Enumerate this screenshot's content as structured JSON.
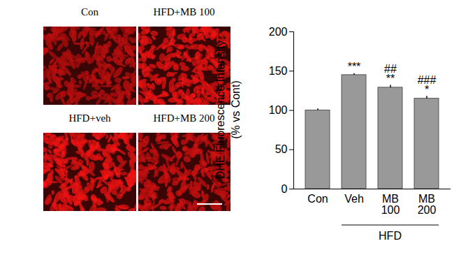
{
  "image_panels": [
    "Con",
    "HFD+MB 100",
    "HFD+veh",
    "HFD+MB 200"
  ],
  "chart_data": {
    "type": "bar",
    "ylabel": "DHE Fluorescence Intensity\n(% vs Cont)",
    "categories": [
      "Con",
      "Veh",
      "MB\n100",
      "MB\n200"
    ],
    "values": [
      100,
      145,
      129,
      115
    ],
    "errors": [
      2,
      2,
      3,
      3
    ],
    "annotations": [
      [],
      [
        "***"
      ],
      [
        "##",
        "**"
      ],
      [
        "###",
        "*"
      ]
    ],
    "group": {
      "label": "HFD",
      "categories": [
        "Veh",
        "MB\n100",
        "MB\n200"
      ]
    },
    "color": "#999999",
    "ylim": [
      0,
      200
    ],
    "yticks": [
      0,
      50,
      100,
      150,
      200
    ],
    "grid": false
  }
}
